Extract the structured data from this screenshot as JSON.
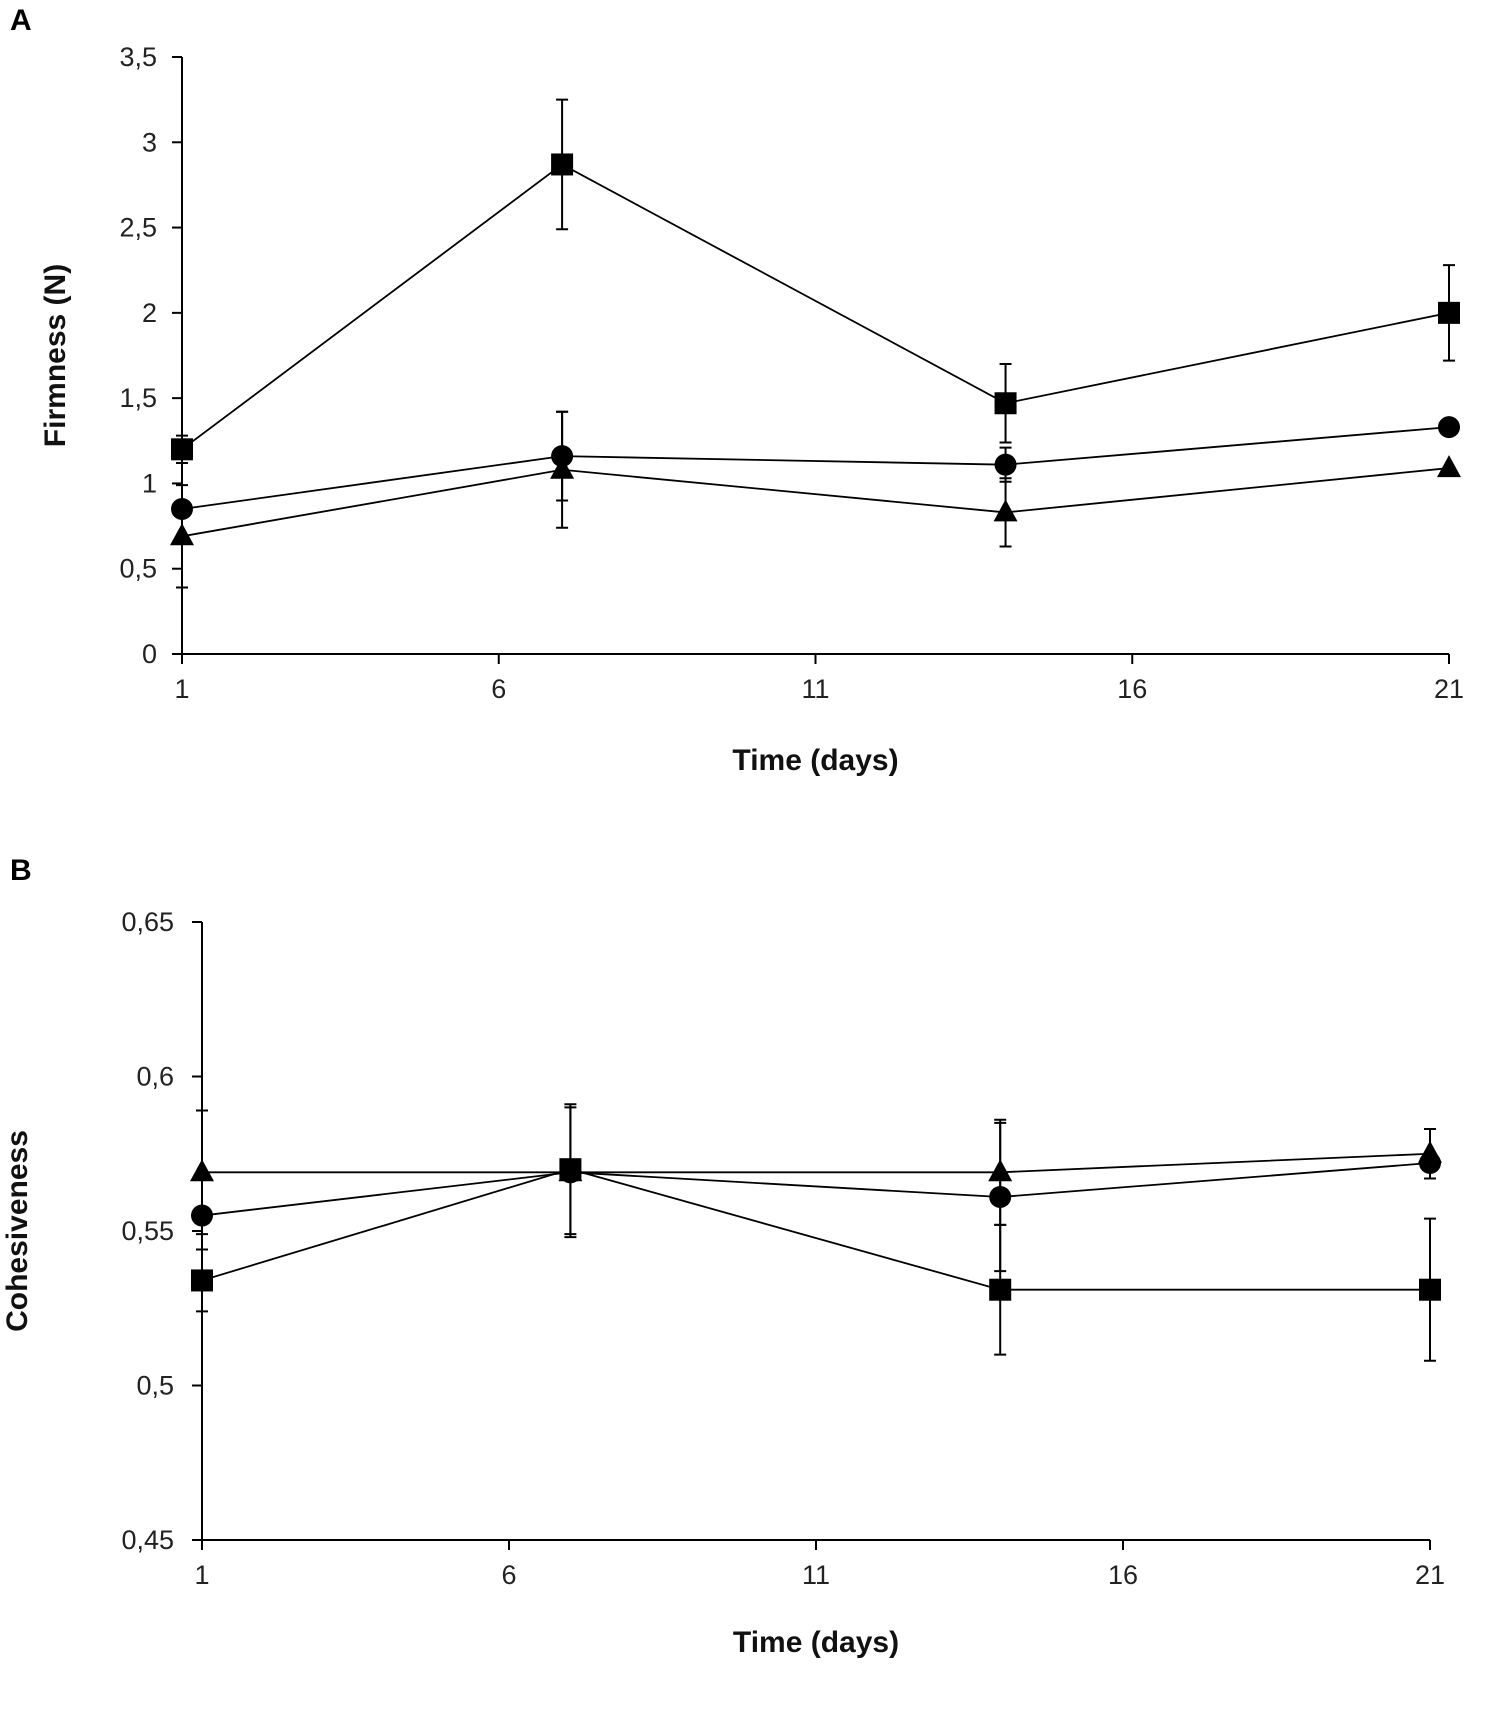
{
  "chart_data": [
    {
      "panel": "A",
      "type": "line",
      "title": "",
      "xlabel": "Time (days)",
      "ylabel": "Firmness (N)",
      "xlim": [
        1,
        21
      ],
      "ylim": [
        0,
        3.5
      ],
      "xticks": [
        1,
        6,
        11,
        16,
        21
      ],
      "xtick_labels": [
        "1",
        "6",
        "11",
        "16",
        "21"
      ],
      "yticks": [
        0,
        0.5,
        1,
        1.5,
        2,
        2.5,
        3,
        3.5
      ],
      "ytick_labels": [
        "0",
        "0,5",
        "1",
        "1,5",
        "2",
        "2,5",
        "3",
        "3,5"
      ],
      "legend": "none",
      "grid": false,
      "series": [
        {
          "name": "square",
          "marker": "square",
          "x": [
            1,
            7,
            14,
            21
          ],
          "values": [
            1.2,
            2.87,
            1.47,
            2.0
          ],
          "error": [
            0.08,
            0.38,
            0.23,
            0.28
          ]
        },
        {
          "name": "circle",
          "marker": "circle",
          "x": [
            1,
            7,
            14,
            21
          ],
          "values": [
            0.85,
            1.16,
            1.11,
            1.33
          ],
          "error": [
            0,
            0.26,
            0.1,
            0
          ]
        },
        {
          "name": "triangle",
          "marker": "triangle",
          "x": [
            1,
            7,
            14,
            21
          ],
          "values": [
            0.69,
            1.08,
            0.83,
            1.09
          ],
          "error": [
            0.3,
            0.34,
            0.2,
            0
          ]
        }
      ]
    },
    {
      "panel": "B",
      "type": "line",
      "title": "",
      "xlabel": "Time (days)",
      "ylabel": "Cohesiveness",
      "xlim": [
        1,
        21
      ],
      "ylim": [
        0.45,
        0.65
      ],
      "xticks": [
        1,
        6,
        11,
        16,
        21
      ],
      "xtick_labels": [
        "1",
        "6",
        "11",
        "16",
        "21"
      ],
      "yticks": [
        0.45,
        0.5,
        0.55,
        0.6,
        0.65
      ],
      "ytick_labels": [
        "0,45",
        "0,5",
        "0,55",
        "0,6",
        "0,65"
      ],
      "legend": "none",
      "grid": false,
      "series": [
        {
          "name": "triangle",
          "marker": "triangle",
          "x": [
            1,
            7,
            14,
            21
          ],
          "values": [
            0.569,
            0.569,
            0.569,
            0.575
          ],
          "error": [
            0.02,
            0.021,
            0.017,
            0.008
          ]
        },
        {
          "name": "circle",
          "marker": "circle",
          "x": [
            1,
            7,
            14,
            21
          ],
          "values": [
            0.555,
            0.569,
            0.561,
            0.572
          ],
          "error": [
            0,
            0,
            0.024,
            0
          ]
        },
        {
          "name": "square",
          "marker": "square",
          "x": [
            1,
            7,
            14,
            21
          ],
          "values": [
            0.534,
            0.57,
            0.531,
            0.531
          ],
          "error": [
            0.01,
            0.021,
            0.021,
            0.023
          ]
        }
      ]
    }
  ]
}
